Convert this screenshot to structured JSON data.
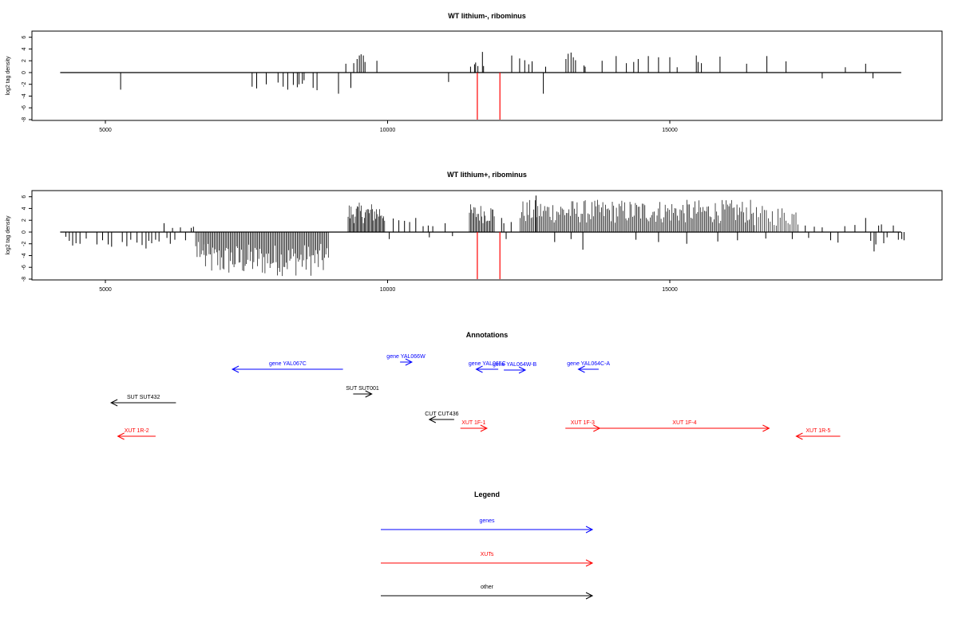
{
  "chart_data": [
    {
      "type": "bar",
      "title": "WT lithium-, ribominus",
      "ylabel": "log2 tag density",
      "xlim": [
        4200,
        19700
      ],
      "ylim": [
        -8,
        6.5
      ],
      "xticks": [
        "5000",
        "10000",
        "15000"
      ],
      "yticks": [
        "6",
        "4",
        "2",
        "0",
        "-2",
        "-4",
        "-6",
        "-8"
      ],
      "baseline": [
        4200,
        19100
      ],
      "marker_x": [
        11590,
        11990
      ],
      "marker_color": "#ff0000",
      "dense_regions": [],
      "bars": [
        [
          5270,
          -2.9
        ],
        [
          7600,
          -2.4
        ],
        [
          7680,
          -2.7
        ],
        [
          7850,
          -2.0
        ],
        [
          8060,
          -1.7
        ],
        [
          8150,
          -2.4
        ],
        [
          8230,
          -2.9
        ],
        [
          8330,
          -2.1
        ],
        [
          8400,
          -2.5
        ],
        [
          8430,
          -2.0
        ],
        [
          8490,
          -1.9
        ],
        [
          8520,
          -1.3
        ],
        [
          8680,
          -2.6
        ],
        [
          8750,
          -3.0
        ],
        [
          9130,
          -3.6
        ],
        [
          9350,
          -2.6
        ],
        [
          9260,
          1.5
        ],
        [
          9400,
          1.6
        ],
        [
          9460,
          2.3
        ],
        [
          9500,
          2.9
        ],
        [
          9530,
          3.1
        ],
        [
          9570,
          2.9
        ],
        [
          9600,
          1.8
        ],
        [
          9810,
          2.0
        ],
        [
          11080,
          -1.6
        ],
        [
          11470,
          1.0
        ],
        [
          11540,
          1.4
        ],
        [
          11560,
          1.7
        ],
        [
          11600,
          1.1
        ],
        [
          11680,
          3.5
        ],
        [
          11700,
          1.1
        ],
        [
          12200,
          2.9
        ],
        [
          12340,
          2.4
        ],
        [
          12430,
          2.1
        ],
        [
          12500,
          1.4
        ],
        [
          12560,
          1.9
        ],
        [
          12760,
          -3.6
        ],
        [
          12800,
          1.0
        ],
        [
          13160,
          2.3
        ],
        [
          13200,
          3.2
        ],
        [
          13250,
          3.4
        ],
        [
          13290,
          2.6
        ],
        [
          13330,
          2.1
        ],
        [
          13480,
          1.2
        ],
        [
          13500,
          1.0
        ],
        [
          13800,
          2.0
        ],
        [
          14050,
          2.8
        ],
        [
          14230,
          1.6
        ],
        [
          14360,
          1.8
        ],
        [
          14440,
          2.3
        ],
        [
          14620,
          2.8
        ],
        [
          14800,
          2.6
        ],
        [
          15000,
          2.6
        ],
        [
          15130,
          0.9
        ],
        [
          15470,
          2.9
        ],
        [
          15500,
          1.8
        ],
        [
          15560,
          1.6
        ],
        [
          15890,
          2.7
        ],
        [
          16360,
          1.5
        ],
        [
          16720,
          2.8
        ],
        [
          17060,
          1.9
        ],
        [
          17700,
          -1.0
        ],
        [
          18110,
          0.9
        ],
        [
          18470,
          1.5
        ],
        [
          18600,
          -1.0
        ]
      ]
    },
    {
      "type": "bar",
      "title": "WT lithium+, ribominus",
      "ylabel": "log2 tag density",
      "xlim": [
        4200,
        19700
      ],
      "ylim": [
        -8,
        6.5
      ],
      "xticks": [
        "5000",
        "10000",
        "15000"
      ],
      "yticks": [
        "6",
        "4",
        "2",
        "0",
        "-2",
        "-4",
        "-6",
        "-8"
      ],
      "baseline": [
        4200,
        19100
      ],
      "marker_x": [
        11590,
        11990
      ],
      "marker_color": "#ff0000",
      "dense_regions": [
        {
          "x0": 6750,
          "x1": 8950,
          "min": -7.5,
          "max": -2.0,
          "step": 22
        },
        {
          "x0": 6600,
          "x1": 6750,
          "min": -4.5,
          "max": -1.5,
          "step": 25
        },
        {
          "x0": 9300,
          "x1": 9950,
          "min": 1.5,
          "max": 5.0,
          "step": 18
        },
        {
          "x0": 11450,
          "x1": 11900,
          "min": 1.5,
          "max": 4.8,
          "step": 20
        },
        {
          "x0": 12350,
          "x1": 16500,
          "min": 1.5,
          "max": 5.5,
          "step": 24
        },
        {
          "x0": 16500,
          "x1": 17300,
          "min": 1.0,
          "max": 4.5,
          "step": 35
        }
      ],
      "bars": [
        [
          4300,
          -0.8
        ],
        [
          4360,
          -1.5
        ],
        [
          4420,
          -2.3
        ],
        [
          4480,
          -1.9
        ],
        [
          4550,
          -2.0
        ],
        [
          4660,
          -1.1
        ],
        [
          4850,
          -2.1
        ],
        [
          4950,
          -1.4
        ],
        [
          5050,
          -2.1
        ],
        [
          5110,
          -2.5
        ],
        [
          5300,
          -1.7
        ],
        [
          5380,
          -2.4
        ],
        [
          5450,
          -1.3
        ],
        [
          5560,
          -1.8
        ],
        [
          5650,
          -2.2
        ],
        [
          5720,
          -2.8
        ],
        [
          5770,
          -1.5
        ],
        [
          5820,
          -1.9
        ],
        [
          5890,
          -1.3
        ],
        [
          5950,
          -1.6
        ],
        [
          6040,
          1.5
        ],
        [
          6090,
          -1.0
        ],
        [
          6150,
          -2.0
        ],
        [
          6190,
          0.7
        ],
        [
          6230,
          -1.3
        ],
        [
          6330,
          0.8
        ],
        [
          6420,
          -1.4
        ],
        [
          6520,
          0.7
        ],
        [
          6560,
          0.9
        ],
        [
          10030,
          -1.2
        ],
        [
          10100,
          2.3
        ],
        [
          10200,
          2.0
        ],
        [
          10300,
          1.9
        ],
        [
          10390,
          1.7
        ],
        [
          10500,
          2.4
        ],
        [
          10630,
          1.0
        ],
        [
          10720,
          1.1
        ],
        [
          10740,
          -0.9
        ],
        [
          10800,
          1.0
        ],
        [
          11020,
          1.5
        ],
        [
          11150,
          -0.7
        ],
        [
          12020,
          2.4
        ],
        [
          12060,
          1.5
        ],
        [
          12100,
          -1.2
        ],
        [
          12190,
          1.7
        ],
        [
          12630,
          6.2
        ],
        [
          12960,
          -1.7
        ],
        [
          13250,
          -1.2
        ],
        [
          13460,
          -3.0
        ],
        [
          14400,
          -1.3
        ],
        [
          14800,
          -1.7
        ],
        [
          15300,
          -2.0
        ],
        [
          15850,
          -1.6
        ],
        [
          16200,
          -1.4
        ],
        [
          16700,
          -1.1
        ],
        [
          17170,
          -1.2
        ],
        [
          17400,
          1.1
        ],
        [
          17460,
          -1.0
        ],
        [
          17560,
          0.9
        ],
        [
          17700,
          0.8
        ],
        [
          17850,
          -1.4
        ],
        [
          17980,
          -1.8
        ],
        [
          18100,
          1.0
        ],
        [
          18280,
          1.2
        ],
        [
          18470,
          2.4
        ],
        [
          18560,
          -1.5
        ],
        [
          18620,
          -3.3
        ],
        [
          18650,
          -2.1
        ],
        [
          18700,
          1.1
        ],
        [
          18750,
          1.3
        ],
        [
          18790,
          -1.9
        ],
        [
          18850,
          -0.9
        ],
        [
          18960,
          1.1
        ],
        [
          19050,
          -1.3
        ],
        [
          19110,
          -1.2
        ],
        [
          19150,
          -1.4
        ]
      ]
    }
  ],
  "annotations": {
    "title": "Annotations",
    "items": [
      {
        "label": "gene YAL067C",
        "start": 9210,
        "end": 7250,
        "row": 2,
        "color": "#0000ff"
      },
      {
        "label": "gene YAL066W",
        "start": 10220,
        "end": 10430,
        "row": 0,
        "color": "#0000ff"
      },
      {
        "label": "gene YAL065C",
        "start": 11960,
        "end": 11570,
        "row": 2,
        "color": "#0000ff"
      },
      {
        "label": "gene YAL064W-B",
        "start": 12060,
        "end": 12440,
        "row": 1,
        "color": "#0000ff"
      },
      {
        "label": "gene YAL064C-A",
        "start": 13740,
        "end": 13380,
        "row": 2,
        "color": "#0000ff"
      },
      {
        "label": "SUT SUT432",
        "start": 6250,
        "end": 5100,
        "row": 3,
        "color": "#000000"
      },
      {
        "label": "SUT SUT001",
        "start": 9390,
        "end": 9720,
        "row": 4,
        "color": "#000000"
      },
      {
        "label": "CUT CUT436",
        "start": 11180,
        "end": 10740,
        "row": 5,
        "color": "#000000"
      },
      {
        "label": "XUT 1F-1",
        "start": 11290,
        "end": 11760,
        "row": 6,
        "color": "#ff0000"
      },
      {
        "label": "XUT 1F-3",
        "start": 13150,
        "end": 13760,
        "row": 6,
        "color": "#ff0000"
      },
      {
        "label": "XUT 1F-4",
        "start": 13760,
        "end": 16760,
        "row": 6,
        "color": "#ff0000"
      },
      {
        "label": "XUT 1R-2",
        "start": 5890,
        "end": 5220,
        "row": 7,
        "color": "#ff0000"
      },
      {
        "label": "XUT 1R-5",
        "start": 18020,
        "end": 17240,
        "row": 7,
        "color": "#ff0000"
      }
    ]
  },
  "legend": {
    "title": "Legend",
    "items": [
      {
        "label": "genes",
        "color": "#0000ff"
      },
      {
        "label": "XUTs",
        "color": "#ff0000"
      },
      {
        "label": "other",
        "color": "#000000"
      }
    ]
  }
}
